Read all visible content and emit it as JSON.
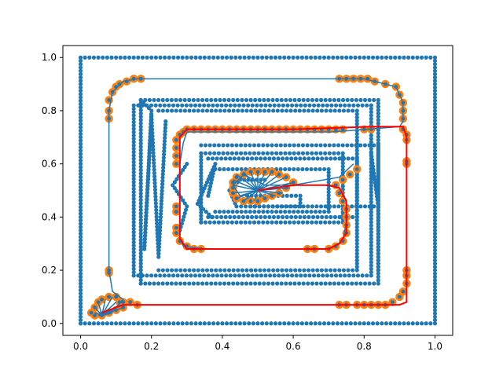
{
  "chart_data": {
    "type": "scatter",
    "title": "",
    "xlabel": "",
    "ylabel": "",
    "xlim": [
      -0.05,
      1.05
    ],
    "ylim": [
      -0.045,
      1.045
    ],
    "grid": false,
    "x_ticks": [
      0.0,
      0.2,
      0.4,
      0.6,
      0.8,
      1.0
    ],
    "y_ticks": [
      0.0,
      0.2,
      0.4,
      0.6,
      0.8,
      1.0
    ],
    "x_tick_labels": [
      "0.0",
      "0.2",
      "0.4",
      "0.6",
      "0.8",
      "1.0"
    ],
    "y_tick_labels": [
      "0.0",
      "0.2",
      "0.4",
      "0.6",
      "0.8",
      "1.0"
    ],
    "colors": {
      "points": "#1f77b4",
      "highlight": "#ff7f0e",
      "path": "#1f77b4",
      "route": "#ff0000"
    },
    "point_paths": [
      [
        [
          0.0,
          0.0
        ],
        [
          1.0,
          0.0
        ],
        [
          1.0,
          1.0
        ],
        [
          0.0,
          1.0
        ],
        [
          0.0,
          0.0
        ]
      ],
      [
        [
          0.17,
          0.15
        ],
        [
          0.84,
          0.15
        ],
        [
          0.84,
          0.84
        ],
        [
          0.17,
          0.84
        ],
        [
          0.17,
          0.15
        ]
      ],
      [
        [
          0.17,
          0.84
        ],
        [
          0.2,
          0.8
        ],
        [
          0.18,
          0.28
        ],
        [
          0.2,
          0.78
        ],
        [
          0.22,
          0.25
        ],
        [
          0.24,
          0.76
        ]
      ],
      [
        [
          0.15,
          0.18
        ],
        [
          0.82,
          0.18
        ],
        [
          0.82,
          0.82
        ],
        [
          0.15,
          0.82
        ],
        [
          0.15,
          0.18
        ]
      ],
      [
        [
          0.22,
          0.2
        ],
        [
          0.78,
          0.2
        ],
        [
          0.78,
          0.8
        ],
        [
          0.22,
          0.8
        ]
      ],
      [
        [
          0.34,
          0.38
        ],
        [
          0.74,
          0.38
        ],
        [
          0.74,
          0.64
        ],
        [
          0.34,
          0.64
        ],
        [
          0.34,
          0.38
        ]
      ],
      [
        [
          0.34,
          0.67
        ],
        [
          0.84,
          0.67
        ],
        [
          0.84,
          0.2
        ]
      ],
      [
        [
          0.36,
          0.62
        ],
        [
          0.78,
          0.62
        ],
        [
          0.78,
          0.4
        ],
        [
          0.36,
          0.4
        ]
      ],
      [
        [
          0.38,
          0.42
        ],
        [
          0.7,
          0.42
        ],
        [
          0.7,
          0.58
        ],
        [
          0.38,
          0.58
        ]
      ],
      [
        [
          0.48,
          0.44
        ],
        [
          0.84,
          0.44
        ],
        [
          0.82,
          0.64
        ]
      ],
      [
        [
          0.36,
          0.48
        ],
        [
          0.38,
          0.6
        ],
        [
          0.33,
          0.45
        ],
        [
          0.37,
          0.4
        ]
      ],
      [
        [
          0.3,
          0.6
        ],
        [
          0.26,
          0.52
        ],
        [
          0.3,
          0.44
        ],
        [
          0.28,
          0.35
        ]
      ],
      [
        [
          0.47,
          0.48
        ],
        [
          0.62,
          0.48
        ],
        [
          0.62,
          0.44
        ],
        [
          0.44,
          0.44
        ],
        [
          0.42,
          0.5
        ],
        [
          0.45,
          0.54
        ],
        [
          0.52,
          0.54
        ]
      ]
    ],
    "blue_path": [
      [
        0.08,
        0.04
      ],
      [
        0.1,
        0.06
      ],
      [
        0.12,
        0.09
      ],
      [
        0.09,
        0.12
      ],
      [
        0.08,
        0.2
      ],
      [
        0.08,
        0.3
      ],
      [
        0.08,
        0.4
      ],
      [
        0.08,
        0.5
      ],
      [
        0.08,
        0.6
      ],
      [
        0.08,
        0.7
      ],
      [
        0.08,
        0.8
      ],
      [
        0.09,
        0.87
      ],
      [
        0.12,
        0.91
      ],
      [
        0.16,
        0.92
      ],
      [
        0.3,
        0.92
      ],
      [
        0.5,
        0.92
      ],
      [
        0.72,
        0.92
      ],
      [
        0.8,
        0.92
      ],
      [
        0.89,
        0.89
      ],
      [
        0.91,
        0.83
      ],
      [
        0.91,
        0.76
      ],
      [
        0.9,
        0.74
      ],
      [
        0.71,
        0.72
      ],
      [
        0.5,
        0.72
      ],
      [
        0.3,
        0.72
      ],
      [
        0.29,
        0.68
      ],
      [
        0.28,
        0.6
      ],
      [
        0.28,
        0.5
      ],
      [
        0.28,
        0.4
      ],
      [
        0.28,
        0.32
      ],
      [
        0.29,
        0.29
      ],
      [
        0.35,
        0.28
      ],
      [
        0.5,
        0.28
      ],
      [
        0.66,
        0.28
      ],
      [
        0.7,
        0.28
      ],
      [
        0.74,
        0.31
      ],
      [
        0.75,
        0.38
      ],
      [
        0.75,
        0.46
      ],
      [
        0.73,
        0.51
      ],
      [
        0.69,
        0.52
      ],
      [
        0.6,
        0.52
      ],
      [
        0.52,
        0.52
      ],
      [
        0.46,
        0.56
      ],
      [
        0.43,
        0.52
      ],
      [
        0.45,
        0.48
      ],
      [
        0.5,
        0.5
      ],
      [
        0.6,
        0.52
      ],
      [
        0.73,
        0.55
      ],
      [
        0.77,
        0.6
      ]
    ],
    "blue_spokes": [
      [
        0.5,
        0.5
      ],
      [
        [
          0.44,
          0.56
        ],
        [
          0.46,
          0.57
        ],
        [
          0.48,
          0.57
        ],
        [
          0.5,
          0.57
        ],
        [
          0.52,
          0.57
        ],
        [
          0.54,
          0.57
        ],
        [
          0.56,
          0.56
        ],
        [
          0.58,
          0.55
        ],
        [
          0.6,
          0.53
        ],
        [
          0.59,
          0.51
        ],
        [
          0.57,
          0.49
        ],
        [
          0.55,
          0.48
        ],
        [
          0.52,
          0.47
        ],
        [
          0.49,
          0.46
        ],
        [
          0.46,
          0.46
        ],
        [
          0.44,
          0.47
        ],
        [
          0.43,
          0.49
        ],
        [
          0.43,
          0.52
        ],
        [
          0.43,
          0.54
        ]
      ]
    ],
    "blue_spokes_corner": [
      [
        0.06,
        0.03
      ],
      [
        [
          0.04,
          0.06
        ],
        [
          0.05,
          0.08
        ],
        [
          0.07,
          0.09
        ],
        [
          0.09,
          0.1
        ],
        [
          0.1,
          0.08
        ],
        [
          0.11,
          0.07
        ],
        [
          0.12,
          0.06
        ],
        [
          0.09,
          0.04
        ],
        [
          0.04,
          0.04
        ],
        [
          0.05,
          0.03
        ],
        [
          0.08,
          0.04
        ]
      ]
    ],
    "orange_highlight": [
      [
        0.09,
        0.87
      ],
      [
        0.1,
        0.89
      ],
      [
        0.11,
        0.9
      ],
      [
        0.13,
        0.91
      ],
      [
        0.15,
        0.92
      ],
      [
        0.17,
        0.92
      ],
      [
        0.73,
        0.92
      ],
      [
        0.75,
        0.92
      ],
      [
        0.77,
        0.92
      ],
      [
        0.79,
        0.92
      ],
      [
        0.81,
        0.92
      ],
      [
        0.83,
        0.91
      ],
      [
        0.86,
        0.9
      ],
      [
        0.89,
        0.89
      ],
      [
        0.9,
        0.86
      ],
      [
        0.91,
        0.83
      ],
      [
        0.91,
        0.8
      ],
      [
        0.91,
        0.77
      ],
      [
        0.08,
        0.84
      ],
      [
        0.08,
        0.8
      ],
      [
        0.08,
        0.77
      ],
      [
        0.08,
        0.2
      ],
      [
        0.08,
        0.19
      ],
      [
        0.28,
        0.71
      ],
      [
        0.29,
        0.72
      ],
      [
        0.3,
        0.73
      ],
      [
        0.32,
        0.73
      ],
      [
        0.34,
        0.73
      ],
      [
        0.36,
        0.73
      ],
      [
        0.38,
        0.73
      ],
      [
        0.4,
        0.73
      ],
      [
        0.42,
        0.73
      ],
      [
        0.44,
        0.73
      ],
      [
        0.46,
        0.73
      ],
      [
        0.48,
        0.73
      ],
      [
        0.5,
        0.73
      ],
      [
        0.52,
        0.73
      ],
      [
        0.54,
        0.73
      ],
      [
        0.56,
        0.73
      ],
      [
        0.58,
        0.73
      ],
      [
        0.6,
        0.73
      ],
      [
        0.62,
        0.73
      ],
      [
        0.64,
        0.73
      ],
      [
        0.66,
        0.73
      ],
      [
        0.68,
        0.73
      ],
      [
        0.7,
        0.73
      ],
      [
        0.72,
        0.73
      ],
      [
        0.74,
        0.73
      ],
      [
        0.8,
        0.73
      ],
      [
        0.82,
        0.73
      ],
      [
        0.27,
        0.69
      ],
      [
        0.27,
        0.66
      ],
      [
        0.27,
        0.63
      ],
      [
        0.27,
        0.6
      ],
      [
        0.27,
        0.44
      ],
      [
        0.27,
        0.42
      ],
      [
        0.27,
        0.36
      ],
      [
        0.27,
        0.34
      ],
      [
        0.28,
        0.31
      ],
      [
        0.3,
        0.29
      ],
      [
        0.32,
        0.28
      ],
      [
        0.34,
        0.28
      ],
      [
        0.64,
        0.28
      ],
      [
        0.66,
        0.28
      ],
      [
        0.7,
        0.28
      ],
      [
        0.72,
        0.29
      ],
      [
        0.74,
        0.31
      ],
      [
        0.75,
        0.34
      ],
      [
        0.75,
        0.37
      ],
      [
        0.75,
        0.4
      ],
      [
        0.75,
        0.43
      ],
      [
        0.74,
        0.46
      ],
      [
        0.73,
        0.49
      ],
      [
        0.72,
        0.52
      ],
      [
        0.74,
        0.54
      ],
      [
        0.76,
        0.56
      ],
      [
        0.78,
        0.58
      ],
      [
        0.91,
        0.73
      ],
      [
        0.92,
        0.71
      ],
      [
        0.92,
        0.69
      ],
      [
        0.92,
        0.61
      ],
      [
        0.92,
        0.6
      ],
      [
        0.92,
        0.2
      ],
      [
        0.92,
        0.18
      ],
      [
        0.92,
        0.15
      ],
      [
        0.91,
        0.12
      ],
      [
        0.9,
        0.1
      ],
      [
        0.88,
        0.08
      ],
      [
        0.86,
        0.07
      ],
      [
        0.84,
        0.07
      ],
      [
        0.82,
        0.07
      ],
      [
        0.8,
        0.07
      ],
      [
        0.78,
        0.07
      ],
      [
        0.75,
        0.07
      ],
      [
        0.73,
        0.07
      ],
      [
        0.16,
        0.07
      ],
      [
        0.14,
        0.08
      ],
      [
        0.12,
        0.08
      ],
      [
        0.44,
        0.55
      ],
      [
        0.46,
        0.56
      ],
      [
        0.48,
        0.57
      ],
      [
        0.5,
        0.57
      ],
      [
        0.52,
        0.57
      ],
      [
        0.54,
        0.57
      ],
      [
        0.56,
        0.56
      ],
      [
        0.58,
        0.55
      ],
      [
        0.6,
        0.53
      ],
      [
        0.58,
        0.51
      ],
      [
        0.56,
        0.49
      ],
      [
        0.54,
        0.48
      ],
      [
        0.52,
        0.47
      ],
      [
        0.5,
        0.46
      ],
      [
        0.48,
        0.46
      ],
      [
        0.46,
        0.46
      ],
      [
        0.44,
        0.47
      ],
      [
        0.43,
        0.49
      ],
      [
        0.43,
        0.51
      ],
      [
        0.43,
        0.53
      ],
      [
        0.03,
        0.04
      ],
      [
        0.04,
        0.06
      ],
      [
        0.05,
        0.08
      ],
      [
        0.06,
        0.09
      ],
      [
        0.08,
        0.1
      ],
      [
        0.1,
        0.1
      ],
      [
        0.11,
        0.08
      ],
      [
        0.12,
        0.06
      ],
      [
        0.1,
        0.05
      ],
      [
        0.08,
        0.04
      ],
      [
        0.06,
        0.03
      ],
      [
        0.04,
        0.03
      ]
    ],
    "red_route": [
      [
        0.06,
        0.04
      ],
      [
        0.12,
        0.07
      ],
      [
        0.3,
        0.07
      ],
      [
        0.5,
        0.07
      ],
      [
        0.7,
        0.07
      ],
      [
        0.9,
        0.07
      ],
      [
        0.92,
        0.08
      ],
      [
        0.92,
        0.2
      ],
      [
        0.92,
        0.4
      ],
      [
        0.92,
        0.6
      ],
      [
        0.92,
        0.7
      ],
      [
        0.91,
        0.74
      ],
      [
        0.82,
        0.74
      ],
      [
        0.6,
        0.73
      ],
      [
        0.4,
        0.73
      ],
      [
        0.3,
        0.73
      ],
      [
        0.28,
        0.7
      ],
      [
        0.28,
        0.5
      ],
      [
        0.28,
        0.32
      ],
      [
        0.3,
        0.28
      ],
      [
        0.5,
        0.28
      ],
      [
        0.7,
        0.28
      ],
      [
        0.73,
        0.3
      ],
      [
        0.75,
        0.34
      ],
      [
        0.75,
        0.46
      ],
      [
        0.73,
        0.51
      ],
      [
        0.7,
        0.52
      ],
      [
        0.6,
        0.52
      ],
      [
        0.5,
        0.5
      ]
    ]
  }
}
